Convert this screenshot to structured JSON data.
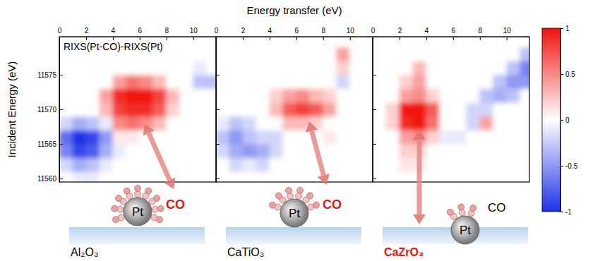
{
  "chart_data": [
    {
      "type": "heatmap",
      "x_label": "Energy transfer (eV)",
      "y_label": "Incident Energy (eV)",
      "annotation": "RIXS(Pt-CO)-RIXS(Pt)",
      "x": [
        0.5,
        1.5,
        2.5,
        3.5,
        4.5,
        5.5,
        6.5,
        7.5,
        8.5,
        9.5,
        10.5,
        11.5
      ],
      "y": [
        11560,
        11562,
        11564,
        11566,
        11568,
        11570,
        11572,
        11574,
        11576,
        11578,
        11580
      ],
      "z": [
        [
          0,
          -0.1,
          -0.1,
          0,
          0,
          0,
          0,
          0,
          0,
          0,
          0,
          0
        ],
        [
          -0.2,
          -0.4,
          -0.3,
          -0.1,
          0,
          0,
          0,
          0,
          0,
          0,
          0,
          0
        ],
        [
          -0.6,
          -0.9,
          -0.8,
          -0.4,
          -0.1,
          0,
          0,
          0,
          0,
          0,
          0,
          0
        ],
        [
          -0.7,
          -1,
          -0.9,
          -0.5,
          0.1,
          0.1,
          0,
          0,
          0,
          0,
          0,
          0
        ],
        [
          -0.2,
          -0.4,
          -0.3,
          -0.1,
          0.5,
          0.6,
          0.5,
          0.3,
          0,
          0,
          0,
          0
        ],
        [
          0,
          0,
          0,
          0.3,
          0.8,
          0.9,
          0.9,
          0.7,
          0.2,
          0,
          0,
          0
        ],
        [
          0,
          0,
          0,
          0.4,
          0.9,
          1,
          1,
          0.8,
          0.3,
          0,
          0,
          0
        ],
        [
          0,
          0,
          0,
          0,
          0.4,
          0.6,
          0.5,
          0.3,
          0,
          0,
          -0.3,
          -0.3
        ],
        [
          0,
          0,
          0,
          0,
          0,
          0,
          0,
          0,
          0,
          0,
          -0.1,
          0
        ],
        [
          0,
          0,
          0,
          0,
          0,
          0,
          0,
          0,
          0,
          0,
          0,
          0
        ],
        [
          0,
          0,
          0,
          0,
          0,
          0,
          0,
          0,
          0,
          0,
          0,
          0
        ]
      ],
      "xlim": [
        0,
        11.7
      ],
      "ylim": [
        11559.5,
        11580.5
      ],
      "xticks": [
        0,
        2,
        4,
        6,
        8,
        10
      ],
      "yticks": [
        11560,
        11565,
        11570,
        11575
      ]
    },
    {
      "type": "heatmap",
      "x": [
        0.5,
        1.5,
        2.5,
        3.5,
        4.5,
        5.5,
        6.5,
        7.5,
        8.5,
        9.5,
        10.5,
        11.5
      ],
      "y": [
        11560,
        11562,
        11564,
        11566,
        11568,
        11570,
        11572,
        11574,
        11576,
        11578,
        11580
      ],
      "z": [
        [
          0,
          0,
          0,
          0,
          0,
          0,
          0,
          0,
          0,
          0,
          0,
          0
        ],
        [
          0,
          -0.2,
          -0.1,
          -0.2,
          0,
          0,
          0,
          0,
          0,
          0,
          0,
          0
        ],
        [
          -0.2,
          -0.4,
          -0.5,
          -0.4,
          -0.2,
          0,
          0,
          0,
          0,
          0,
          0,
          0
        ],
        [
          -0.3,
          -0.5,
          -0.3,
          -0.2,
          -0.2,
          0,
          0,
          0,
          0.1,
          0,
          0,
          0
        ],
        [
          -0.1,
          -0.3,
          -0.2,
          0,
          0,
          0.3,
          0.3,
          0.2,
          0,
          0,
          0,
          0
        ],
        [
          0,
          0,
          0,
          0,
          0.3,
          0.7,
          0.8,
          0.7,
          0.4,
          0,
          0,
          0
        ],
        [
          0,
          0,
          0,
          0,
          0.2,
          0.4,
          0.5,
          0.3,
          0.2,
          0,
          0,
          0
        ],
        [
          0,
          0,
          0,
          0,
          0,
          0,
          0,
          0,
          0,
          -0.2,
          0,
          0
        ],
        [
          0,
          0,
          0,
          0,
          0,
          0,
          0,
          0,
          0,
          0.2,
          0,
          0
        ],
        [
          0,
          0,
          0,
          0,
          0,
          0,
          0,
          0,
          0,
          0.4,
          0,
          0
        ],
        [
          0,
          0,
          0,
          0,
          0,
          0,
          0,
          0,
          0,
          0,
          0,
          0
        ]
      ],
      "xlim": [
        0,
        11.7
      ],
      "ylim": [
        11559.5,
        11580.5
      ],
      "xticks": [
        0,
        2,
        4,
        6,
        8,
        10
      ],
      "yticks": [
        11560,
        11565,
        11570,
        11575
      ],
      "tick_labels": "x"
    },
    {
      "type": "heatmap",
      "x": [
        0.5,
        1.5,
        2.5,
        3.5,
        4.5,
        5.5,
        6.5,
        7.5,
        8.5,
        9.5,
        10.5,
        11.5
      ],
      "y": [
        11560,
        11562,
        11564,
        11566,
        11568,
        11570,
        11572,
        11574,
        11576,
        11578,
        11580
      ],
      "z": [
        [
          0,
          0,
          0,
          0,
          0,
          0,
          0,
          0,
          0,
          0,
          0,
          0
        ],
        [
          0,
          0,
          0.1,
          0.1,
          0,
          0,
          0,
          0,
          0,
          0,
          0,
          0
        ],
        [
          0,
          0,
          0.2,
          0.2,
          0,
          0,
          0,
          0,
          0,
          0,
          0,
          0
        ],
        [
          0,
          0,
          0.4,
          0.5,
          0.2,
          -0.1,
          -0.1,
          0,
          0,
          0,
          0,
          0
        ],
        [
          0,
          0.2,
          0.9,
          1,
          0.6,
          0,
          0,
          -0.2,
          0.4,
          0,
          0,
          0
        ],
        [
          0,
          0.2,
          1,
          1,
          0.7,
          0,
          0,
          -0.2,
          -0.2,
          0,
          0,
          0
        ],
        [
          0,
          0,
          0.4,
          0.5,
          0.2,
          0,
          0,
          0,
          -0.3,
          -0.4,
          -0.3,
          0
        ],
        [
          0,
          0,
          0.2,
          0.4,
          0,
          0,
          0,
          0,
          0,
          -0.3,
          -0.5,
          -0.5
        ],
        [
          0,
          0,
          0,
          0.3,
          0,
          0,
          0,
          0,
          0,
          0,
          -0.3,
          -0.6
        ],
        [
          0,
          0,
          0,
          0,
          0,
          0,
          0,
          0,
          0,
          0,
          0,
          -0.3
        ],
        [
          0,
          0,
          0,
          0,
          0,
          0,
          0,
          0,
          0,
          0,
          0,
          0
        ]
      ],
      "xlim": [
        0,
        11.7
      ],
      "ylim": [
        11559.5,
        11580.5
      ],
      "xticks": [
        0,
        2,
        4,
        6,
        8,
        10
      ],
      "yticks": [
        11560,
        11565,
        11570,
        11575
      ],
      "tick_labels": "x",
      "colorbar_range": [
        -1,
        1
      ],
      "colorbar_ticks": [
        1,
        0.5,
        0,
        -0.5,
        -1
      ]
    }
  ],
  "schematic": [
    {
      "support": {
        "text": "Al₂O₃",
        "color": "#000000"
      },
      "particle": "Pt",
      "adsorbate": {
        "text": "CO",
        "color": "#e8150e"
      },
      "molecules": 9
    },
    {
      "support": {
        "text": "CaTiO₃",
        "color": "#000000"
      },
      "particle": "Pt",
      "adsorbate": {
        "text": "CO",
        "color": "#e8150e"
      },
      "molecules": 6
    },
    {
      "support": {
        "text": "CaZrO₃",
        "color": "#e8150e"
      },
      "particle": "Pt",
      "adsorbate": {
        "text": "CO",
        "color": "#000000"
      },
      "molecules": 3
    }
  ]
}
